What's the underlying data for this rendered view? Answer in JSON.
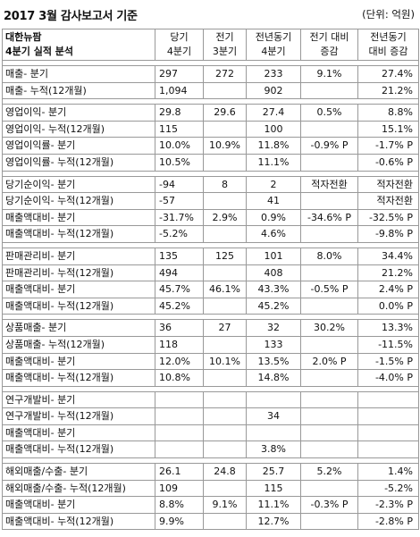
{
  "title": "2017 3월 감사보고서 기준",
  "unit": "(단위: 억원)",
  "header": {
    "company": "대한뉴팜",
    "subtitle": "4분기 실적 분석",
    "c1a": "당기",
    "c1b": "4분기",
    "c2a": "전기",
    "c2b": "3분기",
    "c3a": "전년동기",
    "c3b": "4분기",
    "c4a": "전기 대비",
    "c4b": "증감",
    "c5a": "전년동기",
    "c5b": "대비 증감"
  },
  "groups": [
    [
      [
        "매출- 분기",
        "297",
        "272",
        "233",
        "9.1%",
        "27.4%"
      ],
      [
        "매출- 누적(12개월)",
        "1,094",
        "",
        "902",
        "",
        "21.2%"
      ]
    ],
    [
      [
        "영업이익- 분기",
        "29.8",
        "29.6",
        "27.4",
        "0.5%",
        "8.8%"
      ],
      [
        "영업이익- 누적(12개월)",
        "115",
        "",
        "100",
        "",
        "15.1%"
      ],
      [
        "영업이익률- 분기",
        "10.0%",
        "10.9%",
        "11.8%",
        "-0.9% P",
        "-1.7% P"
      ],
      [
        "영업이익률- 누적(12개월)",
        "10.5%",
        "",
        "11.1%",
        "",
        "-0.6% P"
      ]
    ],
    [
      [
        "당기순이익- 분기",
        "-94",
        "8",
        "2",
        "적자전환",
        "적자전환"
      ],
      [
        "당기순이익- 누적(12개월)",
        "-57",
        "",
        "41",
        "",
        "적자전환"
      ],
      [
        "매출액대비- 분기",
        "-31.7%",
        "2.9%",
        "0.9%",
        "-34.6% P",
        "-32.5% P"
      ],
      [
        "매출액대비- 누적(12개월)",
        "-5.2%",
        "",
        "4.6%",
        "",
        "-9.8% P"
      ]
    ],
    [
      [
        "판매관리비- 분기",
        "135",
        "125",
        "101",
        "8.0%",
        "34.4%"
      ],
      [
        "판매관리비- 누적(12개월)",
        "494",
        "",
        "408",
        "",
        "21.2%"
      ],
      [
        "매출액대비- 분기",
        "45.7%",
        "46.1%",
        "43.3%",
        "-0.5% P",
        "2.4% P"
      ],
      [
        "매출액대비- 누적(12개월)",
        "45.2%",
        "",
        "45.2%",
        "",
        "0.0% P"
      ]
    ],
    [
      [
        "상품매출- 분기",
        "36",
        "27",
        "32",
        "30.2%",
        "13.3%"
      ],
      [
        "상품매출- 누적(12개월)",
        "118",
        "",
        "133",
        "",
        "-11.5%"
      ],
      [
        "매출액대비- 분기",
        "12.0%",
        "10.1%",
        "13.5%",
        "2.0% P",
        "-1.5% P"
      ],
      [
        "매출액대비- 누적(12개월)",
        "10.8%",
        "",
        "14.8%",
        "",
        "-4.0% P"
      ]
    ],
    [
      [
        "연구개발비- 분기",
        "",
        "",
        "",
        "",
        ""
      ],
      [
        "연구개발비- 누적(12개월)",
        "",
        "",
        "34",
        "",
        ""
      ],
      [
        "매출액대비- 분기",
        "",
        "",
        "",
        "",
        ""
      ],
      [
        "매출액대비- 누적(12개월)",
        "",
        "",
        "3.8%",
        "",
        ""
      ]
    ],
    [
      [
        "해외매출/수출- 분기",
        "26.1",
        "24.8",
        "25.7",
        "5.2%",
        "1.4%"
      ],
      [
        "해외매출/수출- 누적(12개월)",
        "109",
        "",
        "115",
        "",
        "-5.2%"
      ],
      [
        "매출액대비- 분기",
        "8.8%",
        "9.1%",
        "11.1%",
        "-0.3% P",
        "-2.3% P"
      ],
      [
        "매출액대비- 누적(12개월)",
        "9.9%",
        "",
        "12.7%",
        "",
        "-2.8% P"
      ]
    ]
  ]
}
